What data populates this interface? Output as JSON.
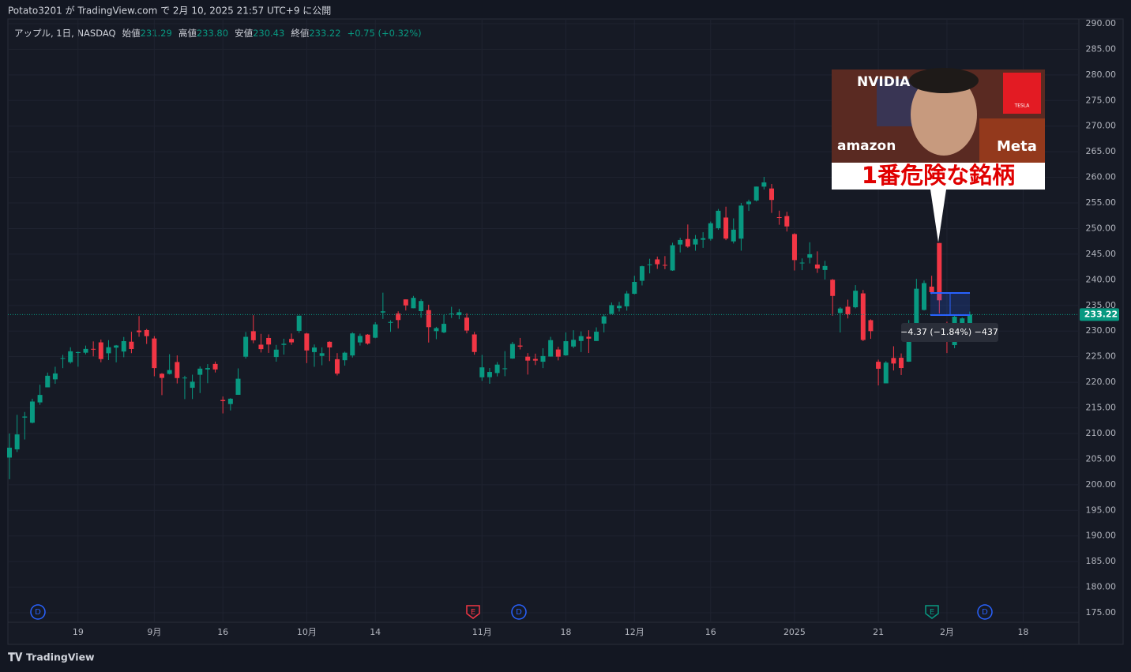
{
  "header": {
    "published": "Potato3201 が TradingView.com で 2月 10, 2025 21:57 UTC+9 に公開",
    "brand": "TradingView"
  },
  "chart_data": {
    "type": "candlestick",
    "symbol": "アップル, 1日, NASDAQ",
    "legend": [
      {
        "label": "始値",
        "value": "231.29"
      },
      {
        "label": "高値",
        "value": "233.80"
      },
      {
        "label": "安値",
        "value": "230.43"
      },
      {
        "label": "終値",
        "value": "233.22"
      }
    ],
    "change": "+0.75 (+0.32%)",
    "up_color": "#089981",
    "down_color": "#f23645",
    "grid": true,
    "ylim": [
      175,
      290
    ],
    "yticks": [
      {
        "value": 175,
        "label": "175.00"
      },
      {
        "value": 180,
        "label": "180.00"
      },
      {
        "value": 185,
        "label": "185.00"
      },
      {
        "value": 190,
        "label": "190.00"
      },
      {
        "value": 195,
        "label": "195.00"
      },
      {
        "value": 200,
        "label": "200.00"
      },
      {
        "value": 205,
        "label": "205.00"
      },
      {
        "value": 210,
        "label": "210.00"
      },
      {
        "value": 215,
        "label": "215.00"
      },
      {
        "value": 220,
        "label": "220.00"
      },
      {
        "value": 225,
        "label": "225.00"
      },
      {
        "value": 230,
        "label": "230.00"
      },
      {
        "value": 235,
        "label": "235.00"
      },
      {
        "value": 240,
        "label": "240.00"
      },
      {
        "value": 245,
        "label": "245.00"
      },
      {
        "value": 250,
        "label": "250.00"
      },
      {
        "value": 255,
        "label": "255.00"
      },
      {
        "value": 260,
        "label": "260.00"
      },
      {
        "value": 265,
        "label": "265.00"
      },
      {
        "value": 270,
        "label": "270.00"
      },
      {
        "value": 275,
        "label": "275.00"
      },
      {
        "value": 280,
        "label": "280.00"
      },
      {
        "value": 285,
        "label": "285.00"
      },
      {
        "value": 290,
        "label": "290.00"
      }
    ],
    "last_price": {
      "value": 233.22,
      "label": "233.22"
    },
    "measure_label": "−4.37 (−1.84%) −437",
    "future_category": "18",
    "events": [
      "D",
      "E",
      "D",
      "E",
      "D"
    ],
    "categories": [
      null,
      null,
      null,
      null,
      null,
      null,
      null,
      null,
      null,
      "19",
      null,
      null,
      null,
      null,
      null,
      null,
      null,
      null,
      null,
      "9月",
      null,
      null,
      null,
      null,
      null,
      null,
      null,
      null,
      "16",
      null,
      null,
      null,
      null,
      null,
      null,
      null,
      null,
      null,
      null,
      "10月",
      null,
      null,
      null,
      null,
      null,
      null,
      null,
      null,
      "14",
      null,
      null,
      null,
      null,
      null,
      null,
      null,
      null,
      null,
      null,
      null,
      null,
      null,
      "11月",
      null,
      null,
      null,
      null,
      null,
      null,
      null,
      null,
      null,
      null,
      "18",
      null,
      null,
      null,
      null,
      null,
      null,
      null,
      null,
      "12月",
      null,
      null,
      null,
      null,
      null,
      null,
      null,
      null,
      null,
      "16",
      null,
      null,
      null,
      null,
      null,
      null,
      null,
      null,
      null,
      null,
      "2025",
      null,
      null,
      null,
      null,
      null,
      null,
      null,
      null,
      null,
      null,
      "21",
      null,
      null,
      null,
      null,
      null,
      null,
      null,
      null,
      "2月",
      null,
      null,
      null
    ],
    "ohlc": [
      [
        205.3,
        209.99,
        201.07,
        207.23
      ],
      [
        206.9,
        213.64,
        206.39,
        209.82
      ],
      [
        213.11,
        214.2,
        208.83,
        213.31
      ],
      [
        212.1,
        216.78,
        211.97,
        216.24
      ],
      [
        216.07,
        219.51,
        215.6,
        217.53
      ],
      [
        219.01,
        221.89,
        219.01,
        221.27
      ],
      [
        220.57,
        223.03,
        219.7,
        221.72
      ],
      [
        224.6,
        225.35,
        222.76,
        224.72
      ],
      [
        223.92,
        226.83,
        223.65,
        226.05
      ],
      [
        225.72,
        225.99,
        223.04,
        225.89
      ],
      [
        225.77,
        227.17,
        225.45,
        226.51
      ],
      [
        226.52,
        227.98,
        225.05,
        226.4
      ],
      [
        227.79,
        228.34,
        223.9,
        224.53
      ],
      [
        225.66,
        228.22,
        224.33,
        226.84
      ],
      [
        226.76,
        227.28,
        223.89,
        227.18
      ],
      [
        226,
        228.85,
        224.89,
        228.03
      ],
      [
        227.92,
        229.86,
        225.68,
        226.49
      ],
      [
        230.1,
        232.92,
        228.88,
        229.79
      ],
      [
        230.19,
        230.4,
        227.48,
        229
      ],
      [
        228.55,
        229,
        221.17,
        222.77
      ],
      [
        221.66,
        221.78,
        217.48,
        220.85
      ],
      [
        221.63,
        225.48,
        221.52,
        222.38
      ],
      [
        223.95,
        225.24,
        219.77,
        220.82
      ],
      [
        220.82,
        221.27,
        216.71,
        220.91
      ],
      [
        218.92,
        221.48,
        216.73,
        220.11
      ],
      [
        221.46,
        223.09,
        217.89,
        222.66
      ],
      [
        222.5,
        223.55,
        219.82,
        222.77
      ],
      [
        223.58,
        224.04,
        221.91,
        222.5
      ],
      [
        216.54,
        217.22,
        213.92,
        216.32
      ],
      [
        215.75,
        216.9,
        214.5,
        216.79
      ],
      [
        217.55,
        222.71,
        217.54,
        220.69
      ],
      [
        224.99,
        229.82,
        224.63,
        228.87
      ],
      [
        229.97,
        233.09,
        227.62,
        228.2
      ],
      [
        227.34,
        229.45,
        225.81,
        226.47
      ],
      [
        228.65,
        229.35,
        225.73,
        227.37
      ],
      [
        224.93,
        227.29,
        224.02,
        226.37
      ],
      [
        227.3,
        228.5,
        225.41,
        227.52
      ],
      [
        228.46,
        229.52,
        227.3,
        227.79
      ],
      [
        230.04,
        233,
        229.65,
        233
      ],
      [
        229.52,
        229.65,
        223.74,
        226.21
      ],
      [
        225.89,
        227.37,
        223.02,
        226.78
      ],
      [
        225.14,
        226.81,
        223.32,
        225.67
      ],
      [
        227.9,
        228,
        224.13,
        226.8
      ],
      [
        224.5,
        225.69,
        221.33,
        221.69
      ],
      [
        224.3,
        225.98,
        223.25,
        225.77
      ],
      [
        225.23,
        229.75,
        224.83,
        229.54
      ],
      [
        227.78,
        229.5,
        227.17,
        229.04
      ],
      [
        229.3,
        229.41,
        227.34,
        227.55
      ],
      [
        228.7,
        231.73,
        228.6,
        231.3
      ],
      [
        233.61,
        237.49,
        232.37,
        233.85
      ],
      [
        231.6,
        232.12,
        229.84,
        231.78
      ],
      [
        233.43,
        233.85,
        230.52,
        232.15
      ],
      [
        236.18,
        236.18,
        234.01,
        235
      ],
      [
        234.45,
        236.85,
        234.45,
        236.48
      ],
      [
        233.89,
        236.22,
        232.6,
        235.86
      ],
      [
        234.08,
        235.14,
        227.76,
        230.76
      ],
      [
        229.98,
        230.82,
        228.41,
        230.57
      ],
      [
        229.74,
        233.22,
        229.57,
        231.41
      ],
      [
        233.32,
        234.73,
        232.55,
        233.4
      ],
      [
        233.1,
        234.33,
        232.32,
        233.67
      ],
      [
        232.61,
        233.47,
        229.55,
        230.1
      ],
      [
        229.34,
        229.83,
        225.37,
        225.91
      ],
      [
        220.97,
        225.35,
        220.27,
        222.91
      ],
      [
        220.99,
        222.79,
        219.71,
        222.01
      ],
      [
        221.8,
        223.95,
        221.14,
        223.45
      ],
      [
        222.61,
        226.07,
        221.19,
        222.72
      ],
      [
        224.63,
        227.88,
        224.57,
        227.48
      ],
      [
        227.17,
        228.66,
        226.41,
        226.96
      ],
      [
        225,
        225.7,
        221.5,
        224.23
      ],
      [
        224.55,
        225.59,
        223.36,
        224.23
      ],
      [
        224.01,
        226.65,
        222.76,
        225.12
      ],
      [
        225.02,
        228.87,
        225,
        228.22
      ],
      [
        226.4,
        226.92,
        224.27,
        225
      ],
      [
        225.25,
        229.74,
        225.17,
        228.02
      ],
      [
        226.98,
        230.16,
        226.66,
        228.28
      ],
      [
        228.06,
        229.93,
        225.89,
        229
      ],
      [
        228.88,
        230.16,
        225.71,
        228.52
      ],
      [
        228.06,
        230.72,
        228.06,
        229.87
      ],
      [
        231.46,
        233.25,
        229.74,
        232.87
      ],
      [
        233.33,
        235.57,
        233.33,
        235.06
      ],
      [
        234.47,
        235.69,
        233.81,
        234.93
      ],
      [
        234.81,
        237.81,
        233.97,
        237.33
      ],
      [
        237.27,
        240.79,
        237.16,
        239.59
      ],
      [
        239.81,
        242.76,
        238.9,
        242.65
      ],
      [
        242.87,
        244.11,
        241.25,
        243.01
      ],
      [
        243.99,
        244.54,
        242.13,
        243.04
      ],
      [
        242.91,
        244.63,
        242.08,
        242.84
      ],
      [
        241.83,
        247.24,
        241.75,
        246.75
      ],
      [
        246.89,
        248.21,
        245.34,
        247.77
      ],
      [
        247.96,
        250.8,
        246.26,
        246.49
      ],
      [
        246.89,
        248.74,
        245.68,
        247.96
      ],
      [
        247.82,
        249.29,
        246.24,
        248.13
      ],
      [
        247.99,
        251.38,
        247.65,
        251.04
      ],
      [
        250.08,
        253.83,
        249.78,
        253.48
      ],
      [
        252.16,
        254.28,
        247.74,
        248.05
      ],
      [
        247.5,
        252,
        247.09,
        249.79
      ],
      [
        248.04,
        255,
        245.69,
        254.49
      ],
      [
        254.77,
        255.65,
        253.45,
        255.27
      ],
      [
        255.49,
        258.21,
        255.29,
        258.2
      ],
      [
        258.19,
        260.1,
        257.63,
        259.02
      ],
      [
        257.83,
        258.7,
        253.06,
        255.59
      ],
      [
        252.23,
        253.5,
        250.75,
        252.2
      ],
      [
        252.44,
        253.28,
        249.43,
        250.42
      ],
      [
        248.93,
        249.1,
        241.82,
        243.85
      ],
      [
        243.36,
        244.18,
        241.89,
        243.36
      ],
      [
        244.31,
        247.33,
        243.2,
        245
      ],
      [
        242.98,
        245.55,
        241.35,
        242.21
      ],
      [
        241.92,
        243.71,
        240.05,
        242.7
      ],
      [
        240.01,
        240.16,
        233,
        236.85
      ],
      [
        233.53,
        234.67,
        229.72,
        234.4
      ],
      [
        234.75,
        236.12,
        232.47,
        233.28
      ],
      [
        234.64,
        238.96,
        234.43,
        237.87
      ],
      [
        237.35,
        238.01,
        228.03,
        228.26
      ],
      [
        232.12,
        232.29,
        228.48,
        229.98
      ],
      [
        224,
        224.42,
        219.38,
        222.64
      ],
      [
        219.79,
        224.12,
        219.79,
        223.83
      ],
      [
        224.74,
        227.03,
        222.3,
        223.66
      ],
      [
        224.78,
        225.63,
        221.41,
        222.78
      ],
      [
        224.02,
        232.15,
        223.98,
        229.86
      ],
      [
        230.85,
        240.19,
        230.81,
        238.26
      ],
      [
        234.12,
        239.86,
        234.01,
        239.36
      ],
      [
        238.67,
        240.79,
        237.21,
        237.59
      ],
      [
        247.19,
        247.19,
        233.44,
        236
      ],
      [
        229.99,
        231.83,
        225.7,
        228.01
      ],
      [
        227.25,
        233.13,
        226.65,
        232.8
      ],
      [
        228.53,
        232.67,
        228.27,
        232.47
      ],
      [
        231.29,
        233.8,
        230.43,
        233.22
      ]
    ]
  },
  "thumbnail": {
    "logos": [
      "NVIDIA",
      "amazon",
      "Meta",
      "TESLA"
    ],
    "caption": "1番危険な銘柄"
  }
}
